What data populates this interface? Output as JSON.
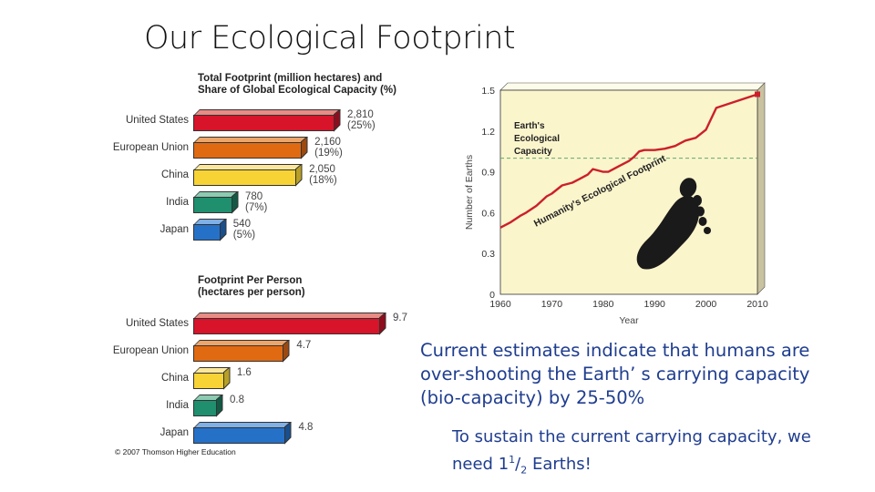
{
  "slide": {
    "title": "Our Ecological Footprint",
    "body_text": "Current estimates indicate that humans are over-shooting the Earth’ s carrying capacity (bio-capacity)  by 25-50%",
    "sub_text_prefix": "To sustain the current carrying capacity, we need 1",
    "sub_text_sup": "1",
    "sub_text_slash": "/",
    "sub_text_sub": "2",
    "sub_text_suffix": " Earths!",
    "copyright": "© 2007 Thomson Higher Education"
  },
  "chart_data": [
    {
      "type": "bar",
      "orientation": "horizontal",
      "title": "Total Footprint (million hectares) and Share of Global Ecological Capacity (%)",
      "title_line1": "Total Footprint (million hectares) and",
      "title_line2": "Share of Global Ecological Capacity (%)",
      "categories": [
        "United States",
        "European Union",
        "China",
        "India",
        "Japan"
      ],
      "values": [
        2810,
        2160,
        2050,
        780,
        540
      ],
      "shares_pct": [
        25,
        19,
        18,
        7,
        5
      ],
      "labels": [
        "2,810 (25%)",
        "2,160 (19%)",
        "2,050 (18%)",
        "780 (7%)",
        "540 (5%)"
      ],
      "colors": [
        "#d7142a",
        "#e06a12",
        "#f8d335",
        "#1f8f6e",
        "#2671c8"
      ],
      "top_colors": [
        "#e88c86",
        "#eca56a",
        "#fbe79c",
        "#8ccbb2",
        "#7fb0e6"
      ],
      "side_colors": [
        "#8f0c1c",
        "#9c4a10",
        "#b8a026",
        "#125a45",
        "#194f8c"
      ]
    },
    {
      "type": "bar",
      "orientation": "horizontal",
      "title": "Footprint Per Person (hectares per person)",
      "title_line1": "Footprint Per Person",
      "title_line2": "(hectares per person)",
      "categories": [
        "United States",
        "European Union",
        "China",
        "India",
        "Japan"
      ],
      "values": [
        9.7,
        4.7,
        1.6,
        0.8,
        4.8
      ],
      "labels": [
        "9.7",
        "4.7",
        "1.6",
        "0.8",
        "4.8"
      ],
      "colors": [
        "#d7142a",
        "#e06a12",
        "#f8d335",
        "#1f8f6e",
        "#2671c8"
      ],
      "top_colors": [
        "#e88c86",
        "#eca56a",
        "#fbe79c",
        "#8ccbb2",
        "#7fb0e6"
      ],
      "side_colors": [
        "#8f0c1c",
        "#9c4a10",
        "#b8a026",
        "#125a45",
        "#194f8c"
      ]
    },
    {
      "type": "line",
      "title": "",
      "xlabel": "Year",
      "ylabel": "Number of Earths",
      "xlim": [
        1960,
        2010
      ],
      "ylim": [
        0,
        1.5
      ],
      "xticks": [
        "1960",
        "1970",
        "1980",
        "1990",
        "2000",
        "2010"
      ],
      "yticks": [
        "0",
        "0.3",
        "0.6",
        "0.9",
        "1.2",
        "1.5"
      ],
      "series": [
        {
          "name": "Humanity's Ecological Footprint",
          "color": "#cc1f2a",
          "x": [
            1960,
            1962,
            1964,
            1965,
            1967,
            1969,
            1970,
            1972,
            1974,
            1975,
            1977,
            1978,
            1979,
            1980,
            1981,
            1983,
            1985,
            1986,
            1987,
            1988,
            1990,
            1992,
            1994,
            1995,
            1996,
            1998,
            2000,
            2001,
            2002,
            2010
          ],
          "y": [
            0.49,
            0.53,
            0.58,
            0.6,
            0.65,
            0.72,
            0.74,
            0.8,
            0.82,
            0.84,
            0.88,
            0.92,
            0.91,
            0.9,
            0.9,
            0.94,
            0.98,
            1.01,
            1.05,
            1.06,
            1.06,
            1.07,
            1.09,
            1.11,
            1.13,
            1.15,
            1.21,
            1.29,
            1.37,
            1.47
          ]
        },
        {
          "name": "Earth's Ecological Capacity",
          "color": "#5fa86a",
          "style": "dashed",
          "x": [
            1960,
            2010
          ],
          "y": [
            1.0,
            1.0
          ]
        }
      ],
      "annotations": [
        {
          "text_line1": "Earth's",
          "text_line2": "Ecological",
          "text_line3": "Capacity"
        },
        {
          "text": "Humanity's Ecological Footprint"
        }
      ],
      "background": "#fbf5cc",
      "grid": false,
      "legend": "none"
    }
  ]
}
